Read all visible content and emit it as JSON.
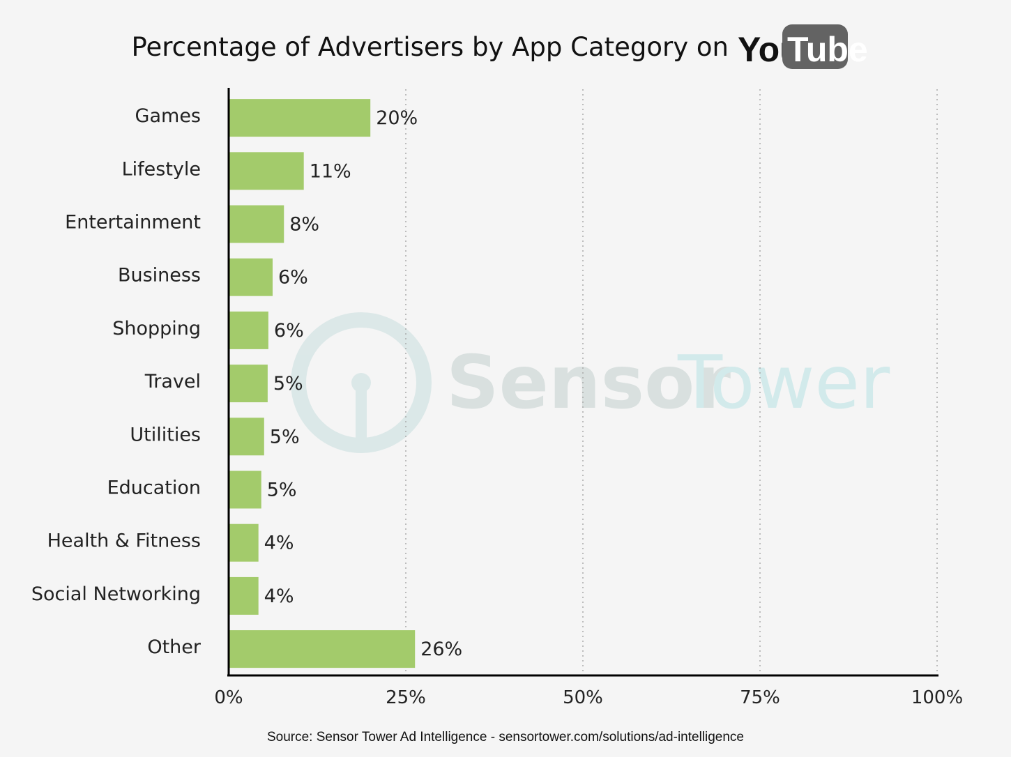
{
  "chart_data": {
    "type": "bar",
    "orientation": "horizontal",
    "title": "Percentage of Advertisers by App Category on",
    "brand_logo": {
      "part1": "You",
      "part2": "Tube",
      "tube_color": "#636363"
    },
    "categories": [
      "Games",
      "Lifestyle",
      "Entertainment",
      "Business",
      "Shopping",
      "Travel",
      "Utilities",
      "Education",
      "Health & Fitness",
      "Social Networking",
      "Other"
    ],
    "values": [
      20,
      10.6,
      7.8,
      6.2,
      5.6,
      5.5,
      5.0,
      4.6,
      4.2,
      4.2,
      26.3
    ],
    "value_labels": [
      "20%",
      "11%",
      "8%",
      "6%",
      "6%",
      "5%",
      "5%",
      "5%",
      "4%",
      "4%",
      "26%"
    ],
    "xlim": [
      0,
      100
    ],
    "x_ticks": [
      0,
      25,
      50,
      75,
      100
    ],
    "x_tick_labels": [
      "0%",
      "25%",
      "50%",
      "75%",
      "100%"
    ],
    "grid": "vertical dotted",
    "bar_color": "#a3cb6b",
    "xlabel": "",
    "ylabel": ""
  },
  "watermark": {
    "part1": "Sensor",
    "part2": "Tower"
  },
  "source": "Source: Sensor Tower Ad Intelligence - sensortower.com/solutions/ad-intelligence"
}
